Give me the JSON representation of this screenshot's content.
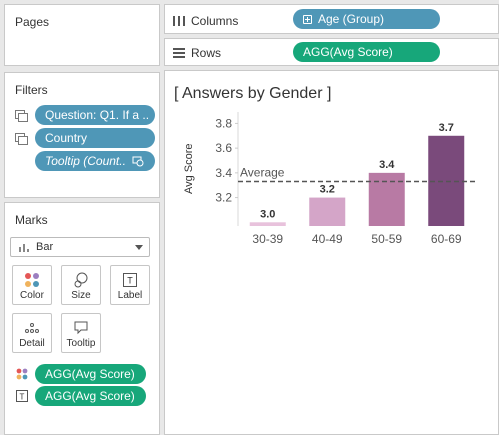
{
  "pages": {
    "title": "Pages"
  },
  "shelves": {
    "columns": {
      "label": "Columns",
      "pill": "Age (Group)"
    },
    "rows": {
      "label": "Rows",
      "pill": "AGG(Avg Score)"
    }
  },
  "filters": {
    "title": "Filters",
    "items": [
      {
        "label": "Question: Q1. If a ..",
        "italic": false
      },
      {
        "label": "Country",
        "italic": false
      },
      {
        "label": "Tooltip (Count..",
        "italic": true
      }
    ]
  },
  "marks": {
    "title": "Marks",
    "mark_type": "Bar",
    "buttons": {
      "color": "Color",
      "size": "Size",
      "label": "Label",
      "detail": "Detail",
      "tooltip": "Tooltip"
    },
    "pills": [
      {
        "encoding": "color",
        "label": "AGG(Avg Score)"
      },
      {
        "encoding": "label",
        "label": "AGG(Avg Score)"
      }
    ]
  },
  "chart_data": {
    "type": "bar",
    "title": "[ Answers by Gender ]",
    "xlabel": "",
    "ylabel": "Avg Score",
    "categories": [
      "30-39",
      "40-49",
      "50-59",
      "60-69"
    ],
    "values": [
      3.0,
      3.2,
      3.4,
      3.7
    ],
    "data_labels": [
      "3.0",
      "3.2",
      "3.4",
      "3.7"
    ],
    "y_ticks": [
      3.2,
      3.4,
      3.6,
      3.8
    ],
    "y_tick_labels": [
      "3.2",
      "3.4",
      "3.6",
      "3.8"
    ],
    "ylim": [
      2.97,
      3.86
    ],
    "bar_colors": [
      "#e8c2dc",
      "#d4a5c8",
      "#b87aa4",
      "#7a4a7b"
    ],
    "reference_line": {
      "label": "Average",
      "value": 3.33,
      "style": "dashed"
    },
    "grid": false,
    "legend": "none"
  }
}
